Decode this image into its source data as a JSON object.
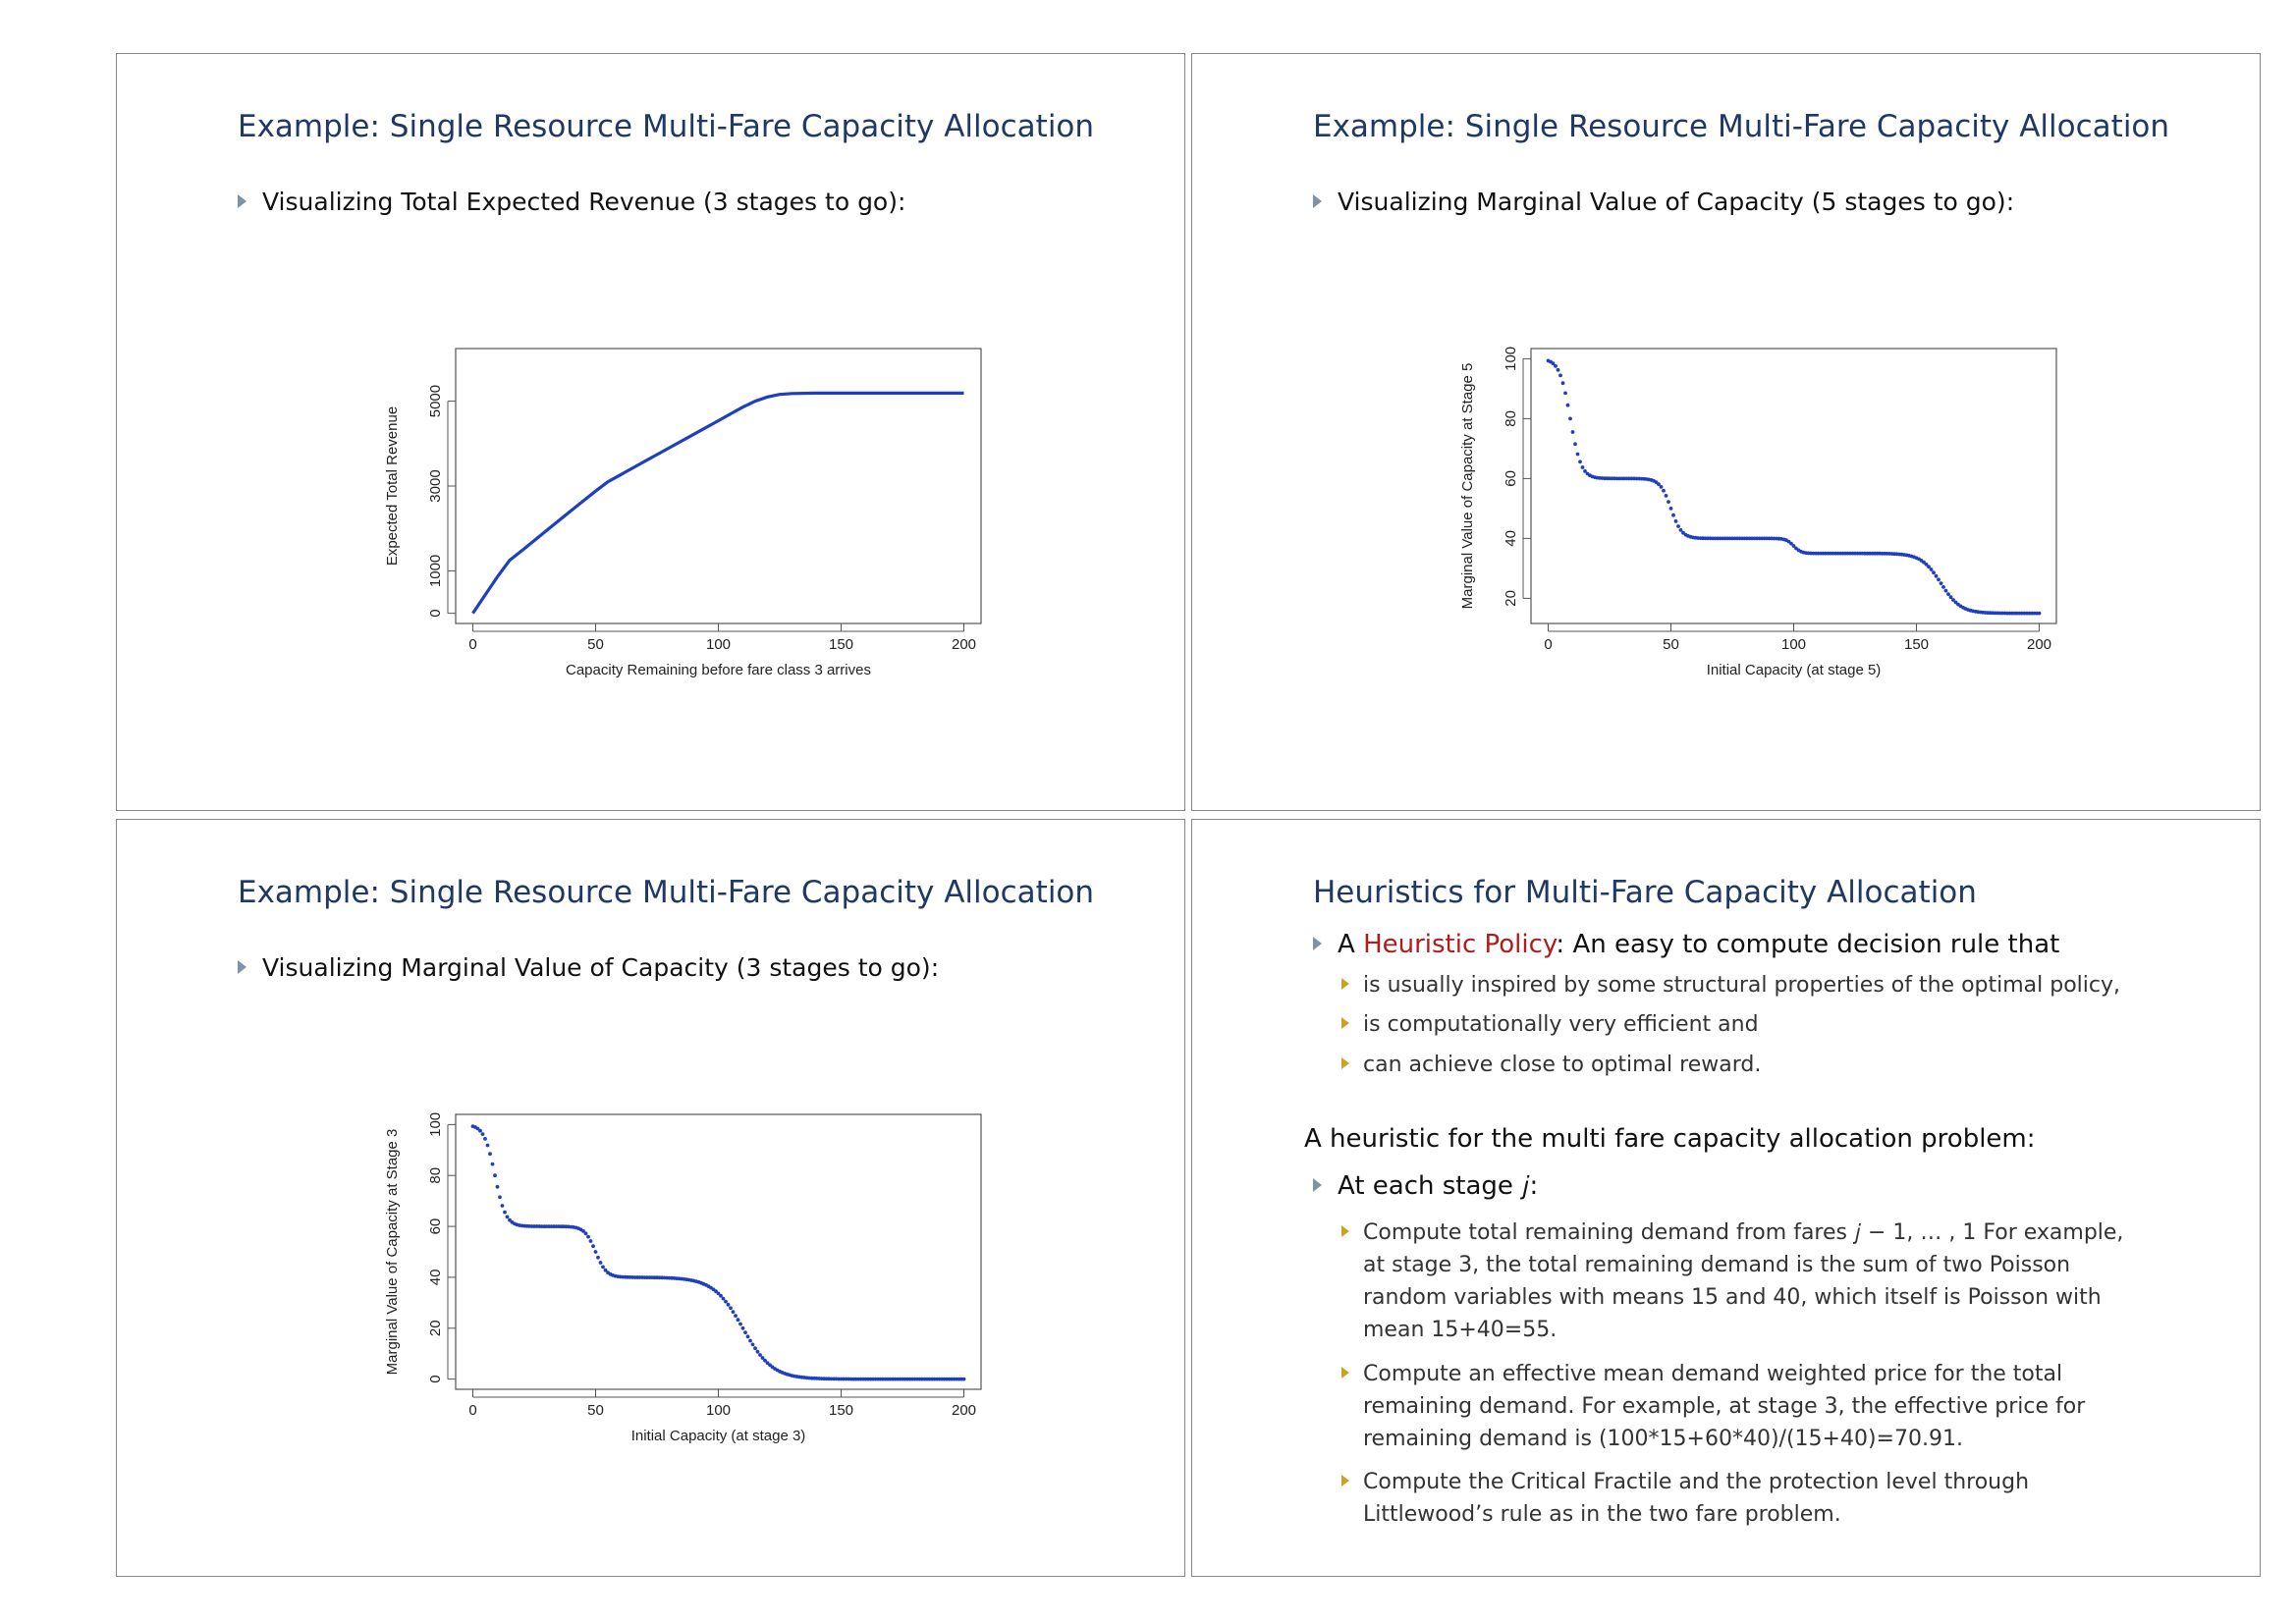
{
  "slides": [
    {
      "title": "Example: Single Resource Multi-Fare Capacity Allocation",
      "bullet": "Visualizing Total Expected Revenue (3 stages to go):",
      "chart_data": {
        "type": "line",
        "xlabel": "Capacity Remaining before fare class 3 arrives",
        "ylabel": "Expected Total Revenue",
        "xlim": [
          0,
          200
        ],
        "ylim": [
          0,
          6000
        ],
        "xticks": [
          0,
          50,
          100,
          150,
          200
        ],
        "yticks": [
          0,
          1000,
          3000,
          5000
        ],
        "x": [
          0,
          5,
          10,
          15,
          20,
          30,
          40,
          50,
          55,
          60,
          70,
          80,
          90,
          100,
          105,
          110,
          115,
          120,
          125,
          130,
          140,
          150,
          160,
          170,
          180,
          190,
          200
        ],
        "y": [
          0,
          430,
          860,
          1250,
          1480,
          1950,
          2420,
          2880,
          3100,
          3260,
          3580,
          3900,
          4220,
          4540,
          4700,
          4860,
          5000,
          5100,
          5160,
          5180,
          5190,
          5190,
          5190,
          5190,
          5190,
          5190,
          5190
        ],
        "color": "#1f3fbf"
      }
    },
    {
      "title": "Example: Single Resource Multi-Fare Capacity Allocation",
      "bullet": "Visualizing Marginal Value of Capacity (5 stages to go):",
      "chart_data": {
        "type": "scatter",
        "xlabel": "Initial Capacity (at stage 5)",
        "ylabel": "Marginal Value of Capacity at Stage 5",
        "xlim": [
          0,
          200
        ],
        "ylim": [
          15,
          100
        ],
        "xticks": [
          0,
          50,
          100,
          150,
          200
        ],
        "yticks": [
          20,
          40,
          60,
          80,
          100
        ],
        "levels": [
          100,
          60,
          40,
          35,
          15
        ],
        "transitions": [
          {
            "at": 9,
            "spread": 2.2
          },
          {
            "at": 50,
            "spread": 2.2
          },
          {
            "at": 100,
            "spread": 1.5
          },
          {
            "at": 160,
            "spread": 4
          }
        ],
        "x_range": [
          0,
          200,
          1
        ],
        "color": "#1f3fbf"
      }
    },
    {
      "title": "Example: Single Resource Multi-Fare Capacity Allocation",
      "bullet": "Visualizing Marginal Value of Capacity (3 stages to go):",
      "chart_data": {
        "type": "scatter",
        "xlabel": "Initial Capacity (at stage 3)",
        "ylabel": "Marginal Value of Capacity at Stage 3",
        "xlim": [
          0,
          200
        ],
        "ylim": [
          0,
          100
        ],
        "xticks": [
          0,
          50,
          100,
          150,
          200
        ],
        "yticks": [
          0,
          20,
          40,
          60,
          80,
          100
        ],
        "levels": [
          100,
          60,
          40,
          0
        ],
        "transitions": [
          {
            "at": 9,
            "spread": 2.2
          },
          {
            "at": 50,
            "spread": 2.2
          },
          {
            "at": 110,
            "spread": 6
          }
        ],
        "x_range": [
          0,
          200,
          1
        ],
        "color": "#1f3fbf"
      }
    }
  ],
  "slide4": {
    "title": "Heuristics for Multi-Fare Capacity Allocation",
    "l1_pre": "A ",
    "l1_hl": "Heuristic Policy",
    "l1_post": ": An easy to compute decision rule that",
    "subs": [
      "is usually inspired by some structural properties of the optimal policy,",
      "is computationally very efficient and",
      "can achieve close to optimal reward."
    ],
    "head": "A heuristic for the multi fare capacity allocation problem:",
    "l2": "At each stage 𝑗:",
    "paras": [
      "Compute total remaining demand from fares 𝑗 − 1, … , 1 For example, at stage 3, the total remaining demand is the sum of two Poisson random variables with means 15 and 40, which itself is Poisson with mean 15+40=55.",
      "Compute an effective mean demand weighted price for the total remaining demand.  For example, at stage 3, the effective price for remaining demand is (100*15+60*40)/(15+40)=70.91.",
      "Compute the Critical Fractile and the protection level through Littlewood’s rule as in the two fare problem."
    ]
  }
}
